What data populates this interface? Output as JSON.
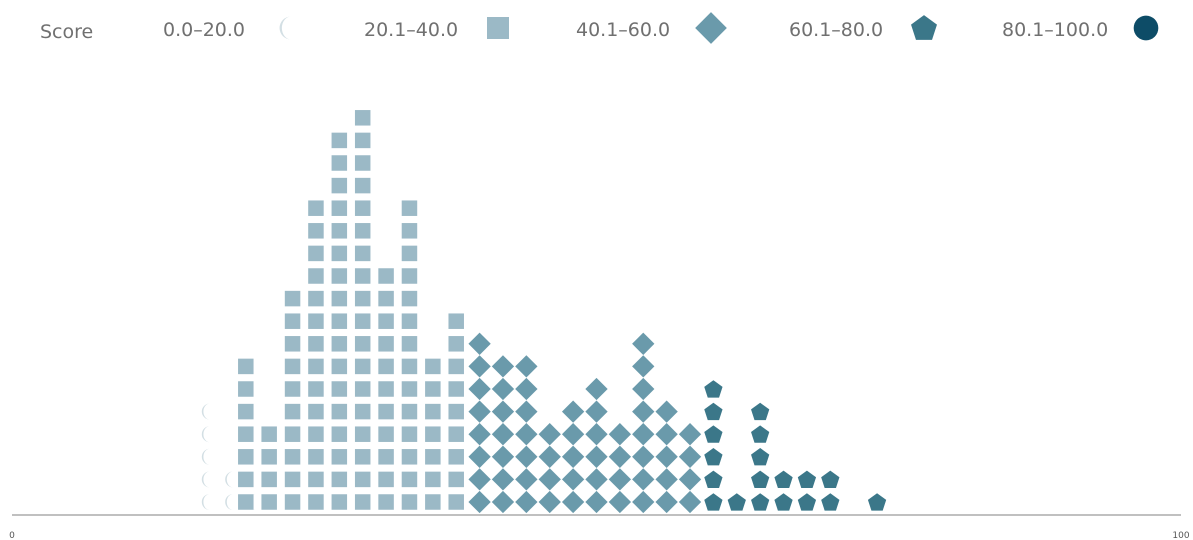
{
  "chart_data": {
    "type": "dot-histogram",
    "legend": {
      "title": "Score",
      "entries": [
        {
          "label": "0.0–20.0",
          "shape": "half-circle",
          "color": "#d3dfe4"
        },
        {
          "label": "20.1–40.0",
          "shape": "square",
          "color": "#9bb9c6"
        },
        {
          "label": "40.1–60.0",
          "shape": "diamond",
          "color": "#6a9aab"
        },
        {
          "label": "60.1–80.0",
          "shape": "pentagon",
          "color": "#3b7789"
        },
        {
          "label": "80.1–100.0",
          "shape": "circle",
          "color": "#0d4c67"
        }
      ],
      "placement": "top"
    },
    "x_axis": {
      "min": 0,
      "max": 100,
      "ticks": [
        "0",
        "100"
      ]
    },
    "grid": false,
    "columns": [
      {
        "x": 16,
        "count": 5,
        "group": 0
      },
      {
        "x": 18,
        "count": 2,
        "group": 0
      },
      {
        "x": 20,
        "count": 1,
        "group": 0
      },
      {
        "x": 20,
        "count": 7,
        "group": 1
      },
      {
        "x": 22,
        "count": 4,
        "group": 1
      },
      {
        "x": 24,
        "count": 10,
        "group": 1
      },
      {
        "x": 26,
        "count": 14,
        "group": 1
      },
      {
        "x": 28,
        "count": 17,
        "group": 1
      },
      {
        "x": 30,
        "count": 18,
        "group": 1
      },
      {
        "x": 32,
        "count": 11,
        "group": 1
      },
      {
        "x": 34,
        "count": 14,
        "group": 1
      },
      {
        "x": 36,
        "count": 7,
        "group": 1
      },
      {
        "x": 38,
        "count": 9,
        "group": 1
      },
      {
        "x": 40,
        "count": 8,
        "group": 2
      },
      {
        "x": 42,
        "count": 7,
        "group": 2
      },
      {
        "x": 44,
        "count": 7,
        "group": 2
      },
      {
        "x": 46,
        "count": 4,
        "group": 2
      },
      {
        "x": 48,
        "count": 5,
        "group": 2
      },
      {
        "x": 50,
        "count": 6,
        "group": 2
      },
      {
        "x": 52,
        "count": 4,
        "group": 2
      },
      {
        "x": 54,
        "count": 8,
        "group": 2
      },
      {
        "x": 56,
        "count": 5,
        "group": 2
      },
      {
        "x": 58,
        "count": 4,
        "group": 2
      },
      {
        "x": 60,
        "count": 6,
        "group": 3
      },
      {
        "x": 62,
        "count": 1,
        "group": 3
      },
      {
        "x": 64,
        "count": 5,
        "group": 3
      },
      {
        "x": 66,
        "count": 2,
        "group": 3
      },
      {
        "x": 68,
        "count": 2,
        "group": 3
      },
      {
        "x": 70,
        "count": 2,
        "group": 3
      },
      {
        "x": 74,
        "count": 1,
        "group": 3
      }
    ]
  }
}
